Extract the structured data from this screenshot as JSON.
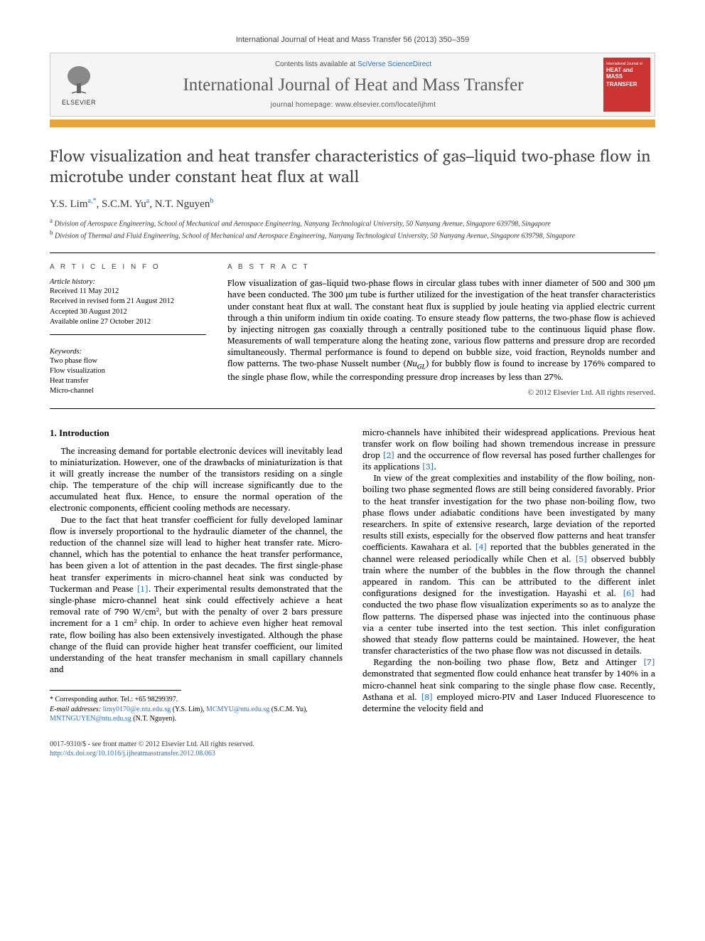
{
  "citation": "International Journal of Heat and Mass Transfer 56 (2013) 350–359",
  "header": {
    "contents_prefix": "Contents lists available at ",
    "contents_link": "SciVerse ScienceDirect",
    "journal_title": "International Journal of Heat and Mass Transfer",
    "homepage_prefix": "journal homepage: ",
    "homepage_url": "www.elsevier.com/locate/ijhmt",
    "elsevier_label": "ELSEVIER",
    "cover_top": "International Journal of",
    "cover_line1": "HEAT and MASS",
    "cover_line2": "TRANSFER"
  },
  "title": "Flow visualization and heat transfer characteristics of gas–liquid two-phase flow in microtube under constant heat flux at wall",
  "authors": {
    "a1_name": "Y.S. Lim",
    "a1_sup": "a,*",
    "a2_name": "S.C.M. Yu",
    "a2_sup": "a",
    "a3_name": "N.T. Nguyen",
    "a3_sup": "b"
  },
  "affiliations": {
    "a": "Division of Aerospace Engineering, School of Mechanical and Aerospace Engineering, Nanyang Technological University, 50 Nanyang Avenue, Singapore 639798, Singapore",
    "b": "Division of Thermal and Fluid Engineering, School of Mechanical and Aerospace Engineering, Nanyang Technological University, 50 Nanyang Avenue, Singapore 639798, Singapore"
  },
  "article_info": {
    "heading": "A R T I C L E   I N F O",
    "history_label": "Article history:",
    "received": "Received 11 May 2012",
    "revised": "Received in revised form 21 August 2012",
    "accepted": "Accepted 30 August 2012",
    "online": "Available online 27 October 2012",
    "keywords_label": "Keywords:",
    "kw1": "Two phase flow",
    "kw2": "Flow visualization",
    "kw3": "Heat transfer",
    "kw4": "Micro-channel"
  },
  "abstract": {
    "heading": "A B S T R A C T",
    "text": "Flow visualization of gas–liquid two-phase flows in circular glass tubes with inner diameter of 500 and 300 μm have been conducted. The 300 μm tube is further utilized for the investigation of the heat transfer characteristics under constant heat flux at wall. The constant heat flux is supplied by joule heating via applied electric current through a thin uniform indium tin oxide coating. To ensure steady flow patterns, the two-phase flow is achieved by injecting nitrogen gas coaxially through a centrally positioned tube to the continuous liquid phase flow. Measurements of wall temperature along the heating zone, various flow patterns and pressure drop are recorded simultaneously. Thermal performance is found to depend on bubble size, void fraction, Reynolds number and flow patterns. The two-phase Nusselt number (NuGL) for bubbly flow is found to increase by 176% compared to the single phase flow, while the corresponding pressure drop increases by less than 27%.",
    "copyright": "© 2012 Elsevier Ltd. All rights reserved."
  },
  "section1_heading": "1. Introduction",
  "col1": {
    "p1": "The increasing demand for portable electronic devices will inevitably lead to miniaturization. However, one of the drawbacks of miniaturization is that it will greatly increase the number of the transistors residing on a single chip. The temperature of the chip will increase significantly due to the accumulated heat flux. Hence, to ensure the normal operation of the electronic components, efficient cooling methods are necessary.",
    "p2": "Due to the fact that heat transfer coefficient for fully developed laminar flow is inversely proportional to the hydraulic diameter of the channel, the reduction of the channel size will lead to higher heat transfer rate. Micro-channel, which has the potential to enhance the heat transfer performance, has been given a lot of attention in the past decades. The first single-phase heat transfer experiments in micro-channel heat sink was conducted by Tuckerman and Pease [1]. Their experimental results demonstrated that the single-phase micro-channel heat sink could effectively achieve a heat removal rate of 790 W/cm², but with the penalty of over 2 bars pressure increment for a 1 cm² chip. In order to achieve even higher heat removal rate, flow boiling has also been extensively investigated. Although the phase change of the fluid can provide higher heat transfer coefficient, our limited understanding of the heat transfer mechanism in small capillary channels and"
  },
  "col2": {
    "p1": "micro-channels have inhibited their widespread applications. Previous heat transfer work on flow boiling had shown tremendous increase in pressure drop [2] and the occurrence of flow reversal has posed further challenges for its applications [3].",
    "p2": "In view of the great complexities and instability of the flow boiling, non-boiling two phase segmented flows are still being considered favorably. Prior to the heat transfer investigation for the two phase non-boiling flow, two phase flows under adiabatic conditions have been investigated by many researchers. In spite of extensive research, large deviation of the reported results still exists, especially for the observed flow patterns and heat transfer coefficients. Kawahara et al. [4] reported that the bubbles generated in the channel were released periodically while Chen et al. [5] observed bubbly train where the number of the bubbles in the flow through the channel appeared in random. This can be attributed to the different inlet configurations designed for the investigation. Hayashi et al. [6] had conducted the two phase flow visualization experiments so as to analyze the flow patterns. The dispersed phase was injected into the continuous phase via a center tube inserted into the test section. This inlet configuration showed that steady flow patterns could be maintained. However, the heat transfer characteristics of the two phase flow was not discussed in details.",
    "p3": "Regarding the non-boiling two phase flow, Betz and Attinger [7] demonstrated that segmented flow could enhance heat transfer by 140% in a micro-channel heat sink comparing to the single phase flow case. Recently, Asthana et al. [8] employed micro-PIV and Laser Induced Fluorescence to determine the velocity field and"
  },
  "footnotes": {
    "corr": "* Corresponding author. Tel.: +65 98299397.",
    "emails_label": "E-mail addresses:",
    "e1": "limy0170@e.ntu.edu.sg",
    "e1_who": "(Y.S. Lim),",
    "e2": "MCMYU@ntu.edu.sg",
    "e2_who": "(S.C.M. Yu),",
    "e3": "MNTNGUYEN@ntu.edu.sg",
    "e3_who": "(N.T. Nguyen)."
  },
  "bottom": {
    "issn": "0017-9310/$ - see front matter © 2012 Elsevier Ltd. All rights reserved.",
    "doi_url": "http://dx.doi.org/10.1016/j.ijheatmasstransfer.2012.08.063"
  },
  "colors": {
    "link": "#2a72c8",
    "orange_bar": "#e8a33d",
    "cover_bg": "#c33",
    "header_bg": "#f5f5f5"
  }
}
